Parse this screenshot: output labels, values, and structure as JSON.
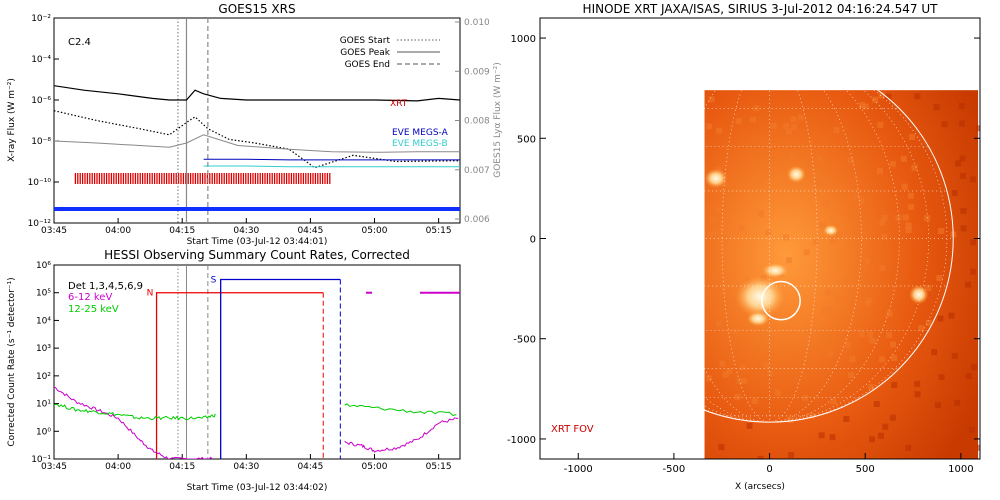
{
  "chart_data": [
    {
      "type": "line",
      "title": "GOES15 XRS",
      "xlabel": "Start Time (03-Jul-12 03:44:01)",
      "ylabel": "X-ray Flux (W m⁻²)",
      "y2label": "GOES15 Lyα Flux (W m⁻²)",
      "ylog": true,
      "ylim": [
        1e-12,
        0.01
      ],
      "y2lim": [
        0.006,
        0.01
      ],
      "xlim": [
        "03:45",
        "05:20"
      ],
      "xticks": [
        "03:45",
        "04:00",
        "04:15",
        "04:30",
        "04:45",
        "05:00",
        "05:15"
      ],
      "yticks": [
        "10⁻²",
        "10⁻⁴",
        "10⁻⁶",
        "10⁻⁸",
        "10⁻¹⁰",
        "10⁻¹²"
      ],
      "y2ticks": [
        "0.010",
        "0.009",
        "0.008",
        "0.007",
        "0.006"
      ],
      "class_label": "C2.4",
      "legend": [
        {
          "label": "GOES Start",
          "style": "dotted",
          "color": "#777777"
        },
        {
          "label": "GOES Peak",
          "style": "solid",
          "color": "#777777"
        },
        {
          "label": "GOES End",
          "style": "dashed",
          "color": "#777777"
        }
      ],
      "markers": {
        "start": "04:14",
        "peak": "04:16",
        "end": "04:21"
      },
      "series": [
        {
          "name": "XRT",
          "color": "#cc0000",
          "x": [
            "03:45",
            "03:52",
            "04:00",
            "04:08",
            "04:12",
            "04:16",
            "04:18",
            "04:20",
            "04:24",
            "04:30",
            "04:40",
            "04:50",
            "05:00",
            "05:10",
            "05:15",
            "05:20"
          ],
          "y": [
            5e-06,
            3e-06,
            2e-06,
            1.2e-06,
            1e-06,
            1e-06,
            3e-06,
            2e-06,
            1.2e-06,
            1e-06,
            1e-06,
            1e-06,
            1e-06,
            9e-07,
            1.2e-06,
            1e-06
          ]
        },
        {
          "name": "XRS short (dotted)",
          "color": "#000000",
          "x": [
            "03:45",
            "03:55",
            "04:05",
            "04:12",
            "04:16",
            "04:18",
            "04:21",
            "04:26",
            "04:32",
            "04:40",
            "04:46",
            "04:55",
            "05:05",
            "05:20"
          ],
          "y": [
            3e-07,
            1e-07,
            4e-08,
            2e-08,
            8e-08,
            1.5e-07,
            4e-08,
            1.2e-08,
            8e-09,
            4e-09,
            5e-10,
            2e-09,
            1e-09,
            1.1e-09
          ]
        },
        {
          "name": "EVE MEGS-A",
          "color": "#0000bb",
          "x": [
            "04:20",
            "04:30",
            "04:40",
            "04:50",
            "05:00",
            "05:10",
            "05:20"
          ],
          "y": [
            1.3e-09,
            1.3e-09,
            1.2e-09,
            1.2e-09,
            1.2e-09,
            1.2e-09,
            1.2e-09
          ]
        },
        {
          "name": "EVE MEGS-B",
          "color": "#33cccc",
          "x": [
            "04:20",
            "04:30",
            "04:40",
            "04:50",
            "05:00",
            "05:10",
            "05:20"
          ],
          "y": [
            6e-10,
            6e-10,
            5.5e-10,
            5.5e-10,
            5.5e-10,
            5.5e-10,
            5.5e-10
          ]
        },
        {
          "name": "XRS long (grey)",
          "color": "#888888",
          "x": [
            "03:45",
            "03:55",
            "04:05",
            "04:12",
            "04:16",
            "04:20",
            "04:28",
            "04:40",
            "04:50",
            "05:00",
            "05:10",
            "05:20"
          ],
          "y": [
            1e-08,
            8e-09,
            6e-09,
            5e-09,
            8e-09,
            2e-08,
            6e-09,
            4e-09,
            3e-09,
            2.8e-09,
            3e-09,
            3e-09
          ]
        }
      ],
      "coverage_bar": {
        "color": "#dd0000",
        "start": "03:50",
        "end": "04:50"
      }
    },
    {
      "type": "line",
      "title": "HESSI Observing Summary Count Rates, Corrected",
      "xlabel": "Start Time (03-Jul-12 03:44:02)",
      "ylabel": "Corrected Count Rate (s⁻¹ detector⁻¹)",
      "ylog": true,
      "ylim": [
        0.1,
        1000000.0
      ],
      "xlim": [
        "03:45",
        "05:20"
      ],
      "xticks": [
        "03:45",
        "04:00",
        "04:15",
        "04:30",
        "04:45",
        "05:00",
        "05:15"
      ],
      "yticks": [
        "10⁶",
        "10⁵",
        "10⁴",
        "10³",
        "10²",
        "10¹",
        "10⁰",
        "10⁻¹"
      ],
      "legend_text": "Det 1,3,4,5,6,9",
      "flags": {
        "N": "N",
        "S": "S"
      },
      "series": [
        {
          "name": "6-12 keV",
          "color": "#cc00cc",
          "x": [
            "03:45",
            "03:50",
            "03:55",
            "04:00",
            "04:05",
            "04:08",
            "04:12",
            "04:18",
            "04:22",
            "04:53",
            "04:57",
            "05:00",
            "05:05",
            "05:10",
            "05:15",
            "05:20"
          ],
          "y": [
            40,
            12,
            6,
            3,
            0.5,
            0.2,
            0.1,
            0.1,
            0.1,
            0.4,
            0.3,
            0.2,
            0.25,
            0.5,
            2,
            3
          ]
        },
        {
          "name": "12-25 keV",
          "color": "#00cc00",
          "x": [
            "03:45",
            "03:50",
            "03:55",
            "04:00",
            "04:05",
            "04:10",
            "04:15",
            "04:20",
            "04:23",
            "04:53",
            "05:00",
            "05:10",
            "05:20"
          ],
          "y": [
            10,
            6,
            5,
            4,
            3,
            3,
            3,
            3,
            4,
            9,
            7,
            5,
            4
          ]
        }
      ],
      "night_intervals": [
        {
          "start": "04:09",
          "end": "04:48",
          "label": "N"
        }
      ],
      "saa_intervals": [
        {
          "start": "04:24",
          "end": "04:52",
          "label": "S"
        }
      ]
    },
    {
      "type": "scatter",
      "title": "HINODE XRT JAXA/ISAS, SIRIUS  3-Jul-2012 04:16:24.547 UT",
      "xlabel": "X (arcsecs)",
      "ylabel": "",
      "xlim": [
        -1200,
        1100
      ],
      "ylim": [
        -1100,
        1100
      ],
      "xticks": [
        "-1000",
        "-500",
        "0",
        "500",
        "1000"
      ],
      "yticks": [
        "1000",
        "500",
        "0",
        "-500",
        "-1000"
      ],
      "fov_label": "XRT FOV",
      "limb_radius": 960,
      "fov": {
        "x0": -340,
        "x1": 1090,
        "y0": -1100,
        "y1": 740
      },
      "flare_circle": {
        "x": 60,
        "y": -310,
        "r": 100
      }
    }
  ]
}
